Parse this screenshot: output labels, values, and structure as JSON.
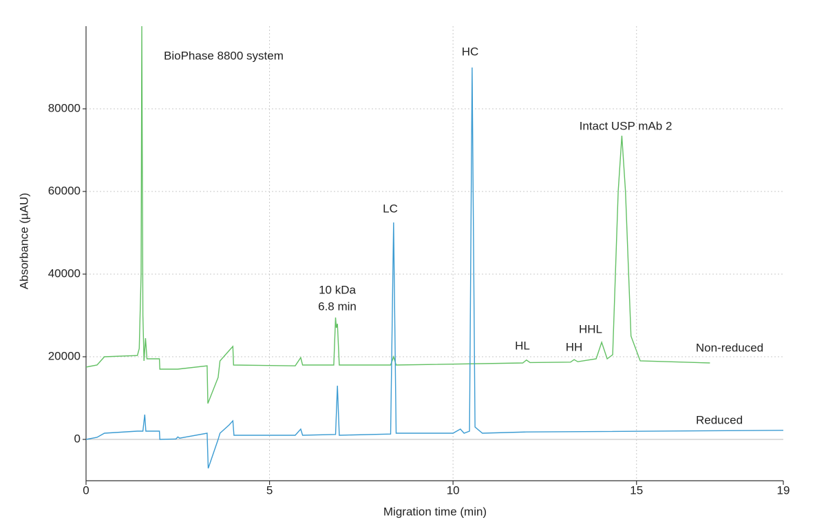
{
  "chart_data": {
    "type": "line",
    "xlabel": "Migration time (min)",
    "ylabel": "Absorbance (µAU)",
    "xlim": [
      0,
      19
    ],
    "xticks": [
      0,
      5,
      10,
      15,
      19
    ],
    "ylim": [
      -10000,
      100000
    ],
    "yticks": [
      0,
      20000,
      40000,
      60000,
      80000
    ],
    "grid": true,
    "annotations": [
      "BioPhase 8800 system",
      "HC",
      "Intact USP mAb 2",
      "LC",
      "10 kDa",
      "6.8 min",
      "HL",
      "HH",
      "HHL"
    ],
    "series": [
      {
        "name": "Non-reduced",
        "color": "#62c063",
        "x": [
          0,
          0.3,
          0.5,
          1.4,
          1.45,
          1.5,
          1.52,
          1.55,
          1.58,
          1.62,
          1.66,
          2.0,
          2.01,
          2.5,
          3.3,
          3.32,
          3.6,
          3.65,
          3.9,
          4.0,
          4.02,
          5.7,
          5.85,
          5.9,
          6.75,
          6.8,
          6.82,
          6.85,
          6.9,
          8.3,
          8.38,
          8.45,
          11.9,
          12.0,
          12.1,
          13.2,
          13.3,
          13.4,
          13.9,
          14.05,
          14.2,
          14.35,
          14.5,
          14.6,
          14.7,
          14.85,
          15.1,
          17.0
        ],
        "values": [
          17500,
          18000,
          20000,
          20300,
          22000,
          40000,
          100000,
          30000,
          19000,
          24500,
          19500,
          19500,
          17000,
          17000,
          17800,
          8700,
          15000,
          19000,
          21500,
          22500,
          18000,
          17800,
          19800,
          18000,
          18000,
          29500,
          27000,
          28000,
          18000,
          18000,
          20000,
          18000,
          18500,
          19200,
          18600,
          18700,
          19300,
          18800,
          19500,
          23500,
          19500,
          20500,
          60000,
          73500,
          60000,
          25000,
          19000,
          18500
        ]
      },
      {
        "name": "Reduced",
        "color": "#3b9bd2",
        "x": [
          0,
          0.3,
          0.5,
          1.4,
          1.55,
          1.6,
          1.63,
          2.0,
          2.01,
          2.45,
          2.5,
          2.55,
          3.3,
          3.33,
          3.6,
          3.65,
          3.9,
          4.0,
          4.03,
          5.7,
          5.85,
          5.9,
          6.8,
          6.85,
          6.9,
          8.3,
          8.38,
          8.45,
          10.0,
          10.2,
          10.3,
          10.45,
          10.52,
          10.6,
          10.8,
          12.0,
          19.0
        ],
        "values": [
          0,
          500,
          1500,
          2000,
          2000,
          6000,
          2000,
          2000,
          0,
          100,
          600,
          300,
          1500,
          -7000,
          0,
          1500,
          3500,
          4500,
          1000,
          1000,
          2500,
          1000,
          1200,
          13000,
          1000,
          1300,
          52500,
          1500,
          1500,
          2500,
          1500,
          2000,
          90000,
          3000,
          1500,
          1800,
          2200
        ]
      }
    ]
  }
}
